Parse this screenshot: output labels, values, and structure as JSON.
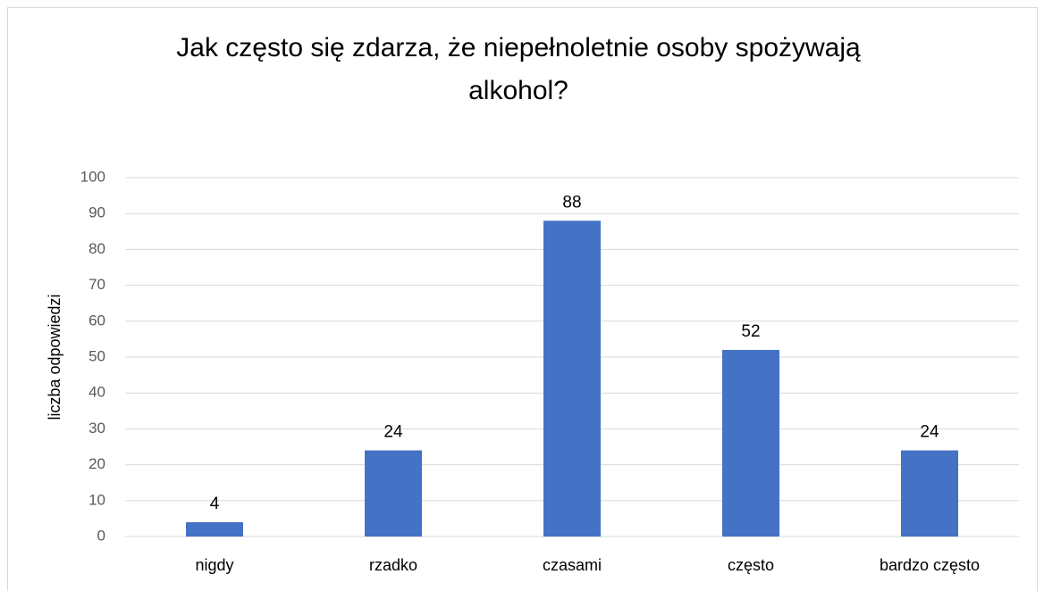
{
  "chart_data": {
    "type": "bar",
    "title": "Jak często się zdarza, że niepełnoletnie osoby spożywają alkohol?",
    "y_label": "liczba odpowiedzi",
    "categories": [
      "nigdy",
      "rzadko",
      "czasami",
      "często",
      "bardzo często"
    ],
    "values": [
      4,
      24,
      88,
      52,
      24
    ],
    "color": "#4472c4",
    "ylim": [
      0,
      100
    ],
    "yticks": [
      0,
      10,
      20,
      30,
      40,
      50,
      60,
      70,
      80,
      90,
      100
    ],
    "grid": true
  }
}
